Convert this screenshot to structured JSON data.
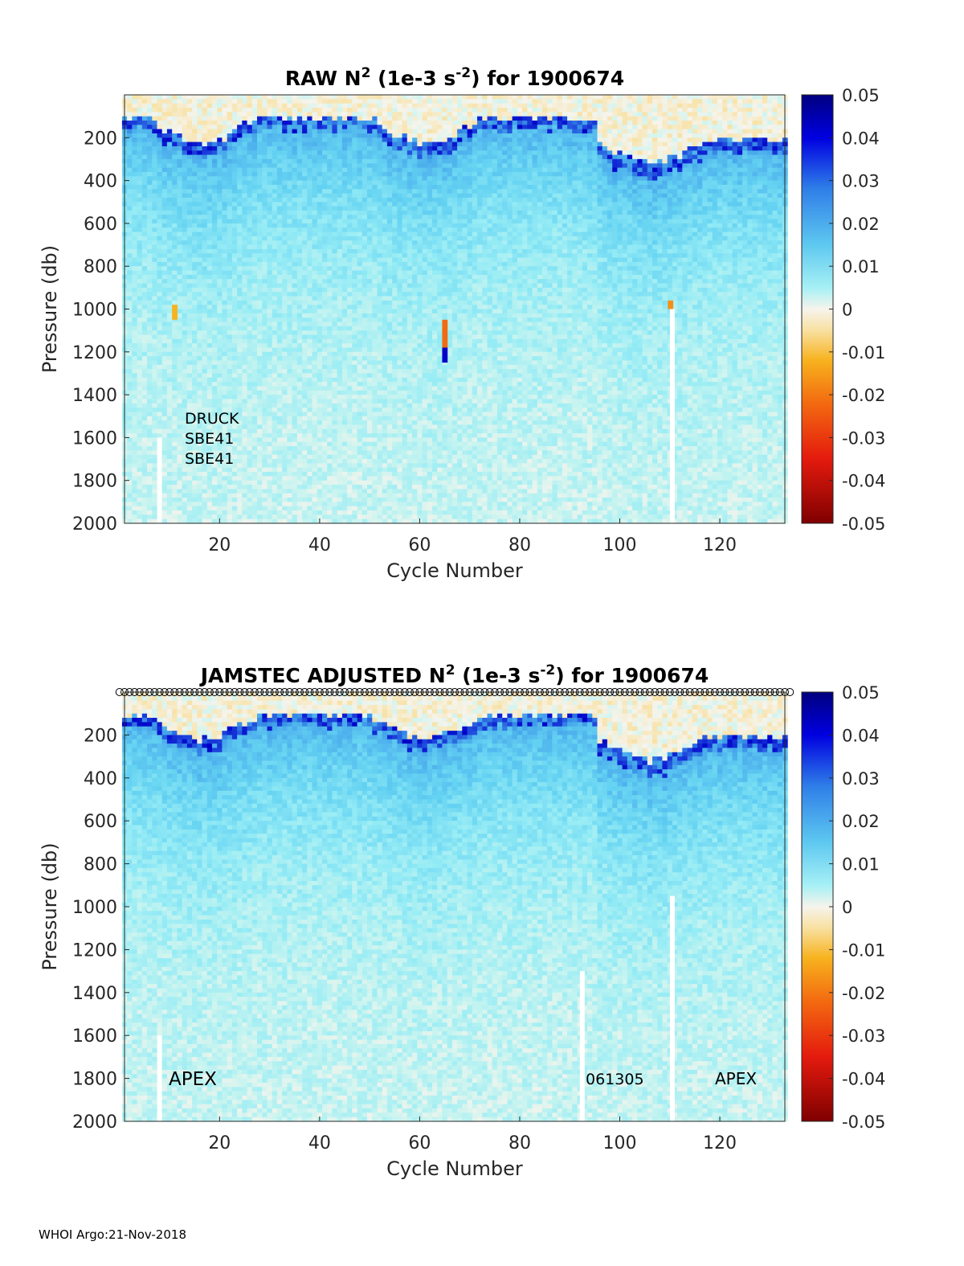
{
  "chart_data": [
    {
      "type": "heatmap",
      "title_main": "RAW N",
      "title_sup": "2",
      "title_unit_pre": " (1e-3 s",
      "title_unit_sup": "-2",
      "title_post": ") for 1900674",
      "xlabel": "Cycle Number",
      "ylabel": "Pressure (db)",
      "xlim": [
        1,
        133
      ],
      "ylim": [
        0,
        2000
      ],
      "y_reversed": true,
      "xticks": [
        "20",
        "40",
        "60",
        "80",
        "100",
        "120"
      ],
      "yticks": [
        "200",
        "400",
        "600",
        "800",
        "1000",
        "1200",
        "1400",
        "1600",
        "1800",
        "2000"
      ],
      "colorbar": {
        "clim": [
          -0.05,
          0.05
        ],
        "ticks": [
          "0.05",
          "0.04",
          "0.03",
          "0.02",
          "0.01",
          "0",
          "-0.01",
          "-0.02",
          "-0.03",
          "-0.04",
          "-0.05"
        ]
      },
      "annotations": [
        "DRUCK",
        "SBE41",
        "SBE41"
      ],
      "gaps": [
        {
          "cycle": 8,
          "from_pressure": 1600,
          "to_pressure": 2000
        },
        {
          "cycle": 110.5,
          "from_pressure": 1000,
          "to_pressure": 2000
        }
      ]
    },
    {
      "type": "heatmap",
      "title_main": "JAMSTEC  ADJUSTED N",
      "title_sup": "2",
      "title_unit_pre": " (1e-3 s",
      "title_unit_sup": "-2",
      "title_post": ") for 1900674",
      "xlabel": "Cycle Number",
      "ylabel": "Pressure (db)",
      "xlim": [
        1,
        133
      ],
      "ylim": [
        0,
        2000
      ],
      "y_reversed": true,
      "xticks": [
        "20",
        "40",
        "60",
        "80",
        "100",
        "120"
      ],
      "yticks": [
        "200",
        "400",
        "600",
        "800",
        "1000",
        "1200",
        "1400",
        "1600",
        "1800",
        "2000"
      ],
      "colorbar": {
        "clim": [
          -0.05,
          0.05
        ],
        "ticks": [
          "0.05",
          "0.04",
          "0.03",
          "0.02",
          "0.01",
          "0",
          "-0.01",
          "-0.02",
          "-0.03",
          "-0.04",
          "-0.05"
        ]
      },
      "top_markers": "circle per cycle",
      "annotations": [
        "APEX",
        "061305",
        "APEX"
      ],
      "gaps": [
        {
          "cycle": 8,
          "from_pressure": 1600,
          "to_pressure": 2000
        },
        {
          "cycle": 92.5,
          "from_pressure": 1300,
          "to_pressure": 2000
        },
        {
          "cycle": 110.5,
          "from_pressure": 950,
          "to_pressure": 2000
        }
      ]
    }
  ],
  "footer": "WHOI Argo:21-Nov-2018"
}
